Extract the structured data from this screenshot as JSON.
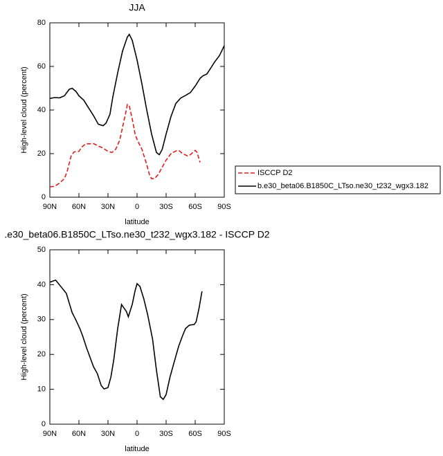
{
  "chart_data": [
    {
      "type": "line",
      "title": "JJA",
      "xlabel": "latitude",
      "ylabel": "High-level cloud (percent)",
      "xlim": [
        90,
        -90
      ],
      "ylim": [
        0,
        80
      ],
      "xticks": [
        {
          "value": 90,
          "label": "90N"
        },
        {
          "value": 60,
          "label": "60N"
        },
        {
          "value": 30,
          "label": "30N"
        },
        0,
        {
          "value": -30,
          "label": "30S"
        },
        {
          "value": -60,
          "label": "60S"
        },
        {
          "value": -90,
          "label": "90S"
        }
      ],
      "yticks": [
        0,
        20,
        40,
        60,
        80
      ],
      "legend_position": "right",
      "series": [
        {
          "name": "ISCCP D2",
          "color": "#e41a1c",
          "dashed": true,
          "x": [
            90,
            85,
            80,
            75,
            72,
            68,
            65,
            60,
            57,
            53,
            48,
            45,
            40,
            35,
            30,
            26,
            22,
            18,
            15,
            12,
            10,
            8,
            5,
            2,
            0,
            -5,
            -10,
            -13,
            -15,
            -18,
            -22,
            -25,
            -30,
            -35,
            -40,
            -43,
            -47,
            -52,
            -55,
            -60,
            -62,
            -65
          ],
          "values": [
            4.8,
            5,
            6.5,
            8.5,
            12,
            19,
            20.8,
            21,
            23,
            24.5,
            24.5,
            24.6,
            23.5,
            22.5,
            21,
            20.5,
            22,
            26,
            32,
            38,
            42.5,
            42,
            36,
            29,
            26.5,
            22,
            15,
            10,
            8.5,
            8.5,
            10.5,
            13,
            17,
            20,
            21.2,
            21.5,
            20,
            19,
            19.5,
            21.5,
            20.5,
            16
          ]
        },
        {
          "name": "b.e30_beta06.B1850C_LTso.ne30_t232_wgx3.182",
          "color": "#000000",
          "dashed": false,
          "x": [
            90,
            85,
            80,
            75,
            70,
            67,
            63,
            60,
            55,
            50,
            45,
            40,
            35,
            32,
            28,
            25,
            20,
            15,
            10,
            8,
            5,
            0,
            -5,
            -10,
            -15,
            -20,
            -23,
            -26,
            -30,
            -35,
            -40,
            -45,
            -50,
            -55,
            -60,
            -65,
            -68,
            -72,
            -75,
            -80,
            -85,
            -90
          ],
          "values": [
            45.3,
            45.7,
            45.6,
            46.5,
            49.5,
            50,
            48.5,
            46.5,
            44.5,
            41,
            37.5,
            33.5,
            32.8,
            34,
            38,
            46,
            57,
            67,
            73.5,
            74.7,
            72,
            63,
            52,
            40,
            29,
            20.5,
            19.5,
            22,
            29,
            37,
            43,
            45.5,
            46.7,
            48,
            51,
            54.5,
            55.7,
            56.5,
            58.5,
            62,
            65,
            69.5
          ]
        }
      ]
    },
    {
      "type": "line",
      "title": ".e30_beta06.B1850C_LTso.ne30_t232_wgx3.182 - ISCCP D2",
      "xlabel": "latitude",
      "ylabel": "High-level cloud (percent)",
      "xlim": [
        90,
        -90
      ],
      "ylim": [
        0,
        50
      ],
      "xticks": [
        {
          "value": 90,
          "label": "90N"
        },
        {
          "value": 60,
          "label": "60N"
        },
        {
          "value": 30,
          "label": "30N"
        },
        0,
        {
          "value": -30,
          "label": "30S"
        },
        {
          "value": -60,
          "label": "60S"
        },
        {
          "value": -90,
          "label": "90S"
        }
      ],
      "yticks": [
        0,
        10,
        20,
        30,
        40,
        50
      ],
      "color": "#000000",
      "x": [
        90,
        84,
        73,
        67,
        63,
        59,
        56,
        52,
        45,
        41,
        37,
        34,
        30,
        27,
        24,
        20,
        16,
        11,
        9,
        5,
        2,
        0,
        -3,
        -7,
        -11,
        -16,
        -20,
        -24,
        -27,
        -30,
        -34,
        -39,
        -43,
        -47,
        -50,
        -54,
        -59,
        -61,
        -64,
        -67
      ],
      "values": [
        40.7,
        41.3,
        37.5,
        32,
        29.8,
        27.4,
        25.2,
        21.8,
        16.5,
        14.5,
        11.1,
        10.1,
        10.5,
        13.5,
        18.5,
        27.4,
        34.3,
        32.3,
        30.8,
        34.3,
        38.3,
        40.3,
        39.5,
        35.9,
        31.3,
        24.4,
        15.5,
        7.9,
        7.1,
        8.5,
        13.5,
        18.5,
        22.4,
        25.4,
        27.4,
        28.4,
        28.6,
        29.4,
        33.3,
        38.1
      ]
    }
  ]
}
